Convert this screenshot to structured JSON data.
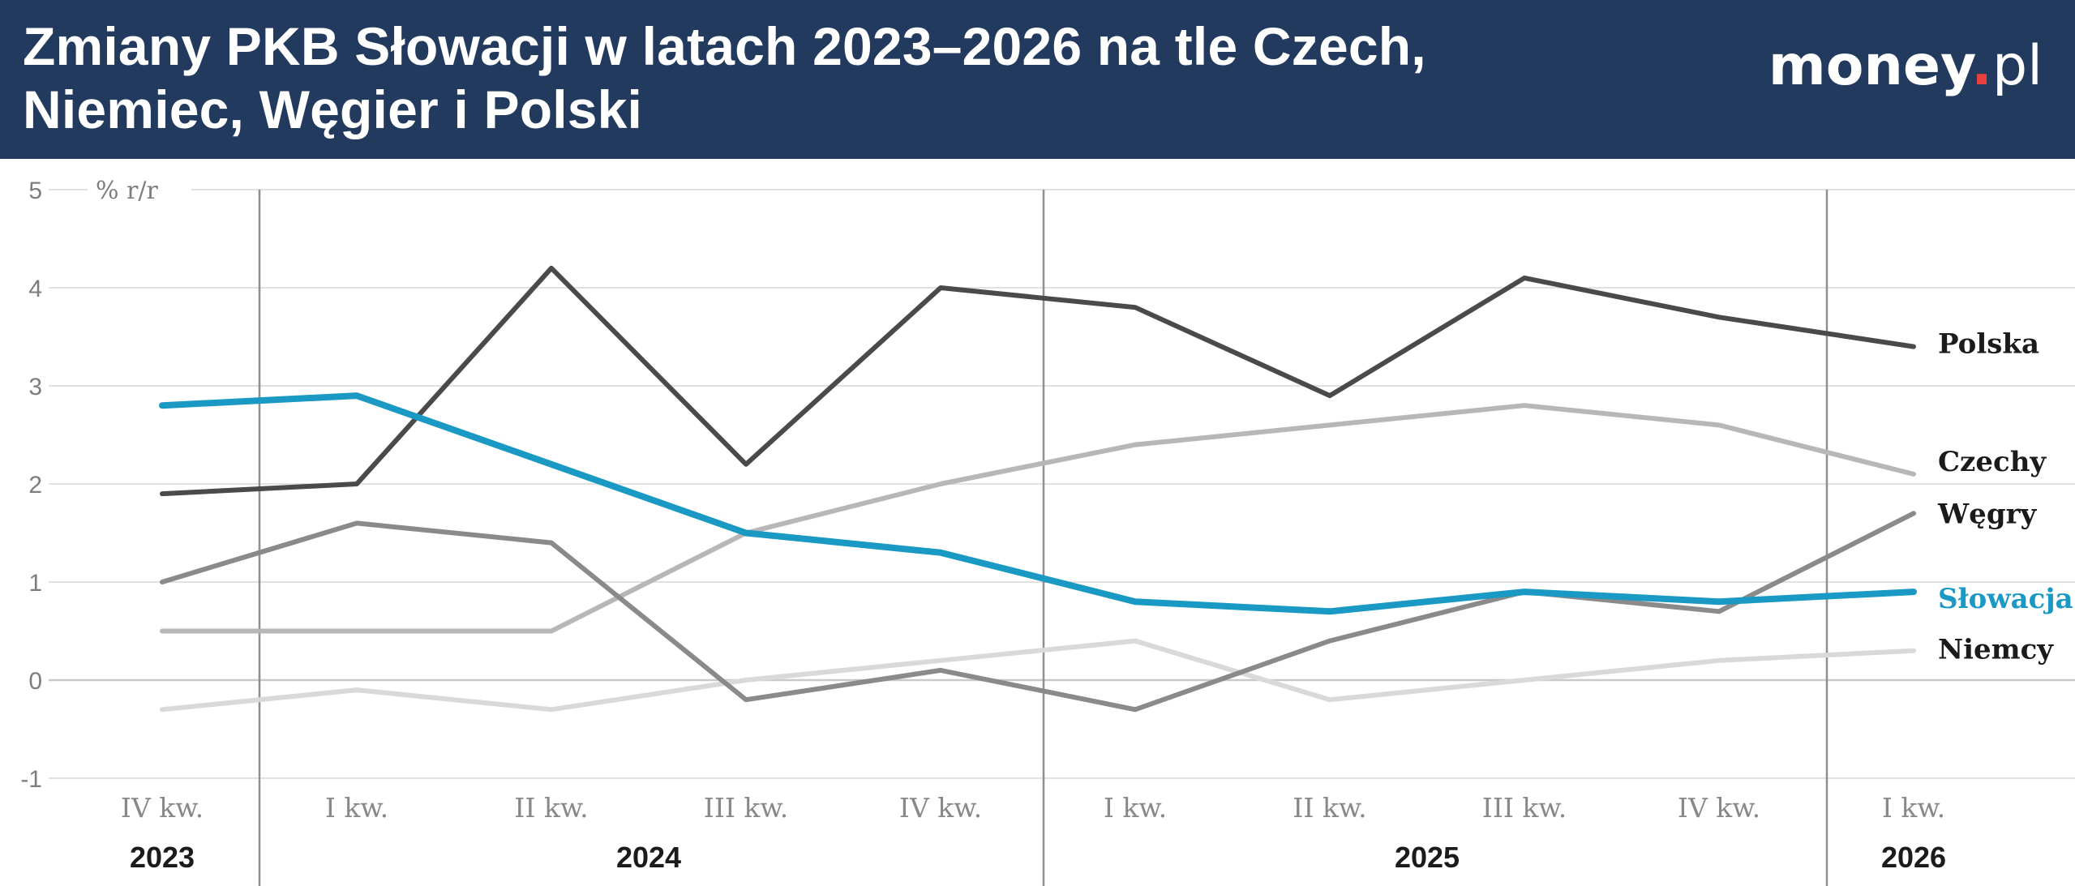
{
  "header": {
    "title": "Zmiany PKB Słowacji w latach 2023–2026 na tle Czech, Niemiec, Węgier i Polski",
    "logo": {
      "name": "money",
      "dot": ".",
      "tld": "pl"
    }
  },
  "colors": {
    "header_background": "#233a5f",
    "logo_dot": "#e8413d",
    "highlight_series": "#1a99c4"
  },
  "chart_data": {
    "type": "line",
    "title": "Zmiany PKB Słowacji w latach 2023–2026 na tle Czech, Niemiec, Węgier i Polski",
    "ylabel": "% r/r",
    "ylim": [
      -1,
      5
    ],
    "yticks": [
      "5",
      "4",
      "3",
      "2",
      "1",
      "0",
      "-1"
    ],
    "grid": true,
    "legend": "inline labels at right end of each line",
    "categories": [
      "IV kw.",
      "I kw.",
      "II kw.",
      "III kw.",
      "IV kw.",
      "I kw.",
      "II kw.",
      "III kw.",
      "IV kw.",
      "I kw."
    ],
    "years": [
      {
        "label": "2023",
        "from": 0,
        "to": 0
      },
      {
        "label": "2024",
        "from": 1,
        "to": 4
      },
      {
        "label": "2025",
        "from": 5,
        "to": 8
      },
      {
        "label": "2026",
        "from": 9,
        "to": 9
      }
    ],
    "series": [
      {
        "name": "Niemcy",
        "color": "#d9d9d9",
        "label_color": "#1b1b1b",
        "values": [
          -0.3,
          -0.1,
          -0.3,
          0.0,
          0.2,
          0.4,
          -0.2,
          0.0,
          0.2,
          0.3
        ]
      },
      {
        "name": "Czechy",
        "color": "#b7b7b7",
        "label_color": "#1b1b1b",
        "values": [
          0.5,
          0.5,
          0.5,
          1.5,
          2.0,
          2.4,
          2.6,
          2.8,
          2.6,
          2.1
        ]
      },
      {
        "name": "Węgry",
        "color": "#8a8a8a",
        "label_color": "#1b1b1b",
        "values": [
          1.0,
          1.6,
          1.4,
          -0.2,
          0.1,
          -0.3,
          0.4,
          0.9,
          0.7,
          1.7
        ]
      },
      {
        "name": "Polska",
        "color": "#4a4a4a",
        "label_color": "#1b1b1b",
        "values": [
          1.9,
          2.0,
          4.2,
          2.2,
          4.0,
          3.8,
          2.9,
          4.1,
          3.7,
          3.4
        ]
      },
      {
        "name": "Słowacja",
        "color": "#1a99c4",
        "label_color": "#1a99c4",
        "values": [
          2.8,
          2.9,
          2.2,
          1.5,
          1.3,
          0.8,
          0.7,
          0.9,
          0.8,
          0.9
        ]
      }
    ]
  }
}
